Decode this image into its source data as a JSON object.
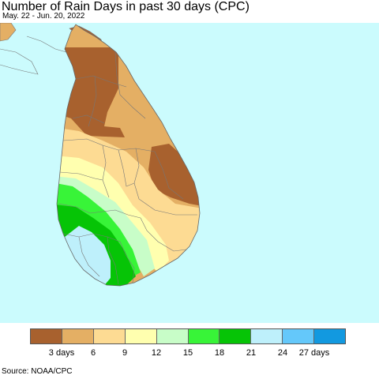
{
  "title": "Number of Rain Days in past 30 days (CPC)",
  "subtitle": "May. 22 - Jun. 20, 2022",
  "source": "Source: NOAA/CPC",
  "colors": {
    "ocean": "#cbfbfd",
    "district_border": "#777777"
  },
  "legend": {
    "colors": [
      "#a8612e",
      "#e4af64",
      "#fddb93",
      "#ffffaf",
      "#c8fdc8",
      "#38f438",
      "#06c406",
      "#bef0fb",
      "#64c8fa",
      "#1299e0"
    ],
    "labels": [
      "3 days",
      "6",
      "9",
      "12",
      "15",
      "18",
      "21",
      "24",
      "27 days"
    ]
  }
}
